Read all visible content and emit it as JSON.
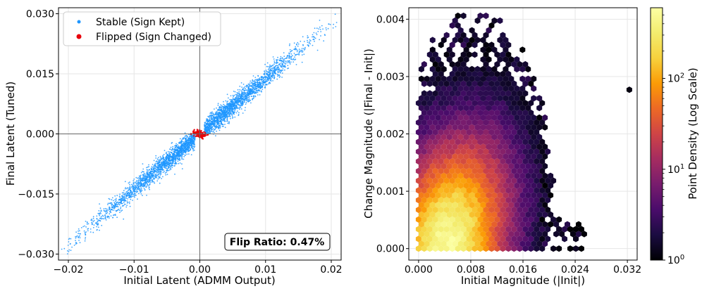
{
  "chart_data": [
    {
      "type": "scatter",
      "xlabel": "Initial Latent (ADMM Output)",
      "ylabel": "Final Latent (Tuned)",
      "xlim": [
        -0.0215,
        0.0215
      ],
      "ylim": [
        -0.0315,
        0.0315
      ],
      "x_ticks": [
        -0.02,
        -0.01,
        0.0,
        0.01,
        0.02
      ],
      "x_tick_labels": [
        "−0.02",
        "−0.01",
        "0.00",
        "0.01",
        "0.02"
      ],
      "y_ticks": [
        -0.03,
        -0.015,
        0.0,
        0.015,
        0.03
      ],
      "y_tick_labels": [
        "−0.030",
        "−0.015",
        "0.000",
        "0.015",
        "0.030"
      ],
      "grid": true,
      "reference_lines": {
        "x": 0,
        "y": 0
      },
      "legend_position": "top-left",
      "series": [
        {
          "name": "Stable (Sign Kept)",
          "color": "#1f96ff",
          "relationship": "y ≈ 1.38·x",
          "x_range": [
            -0.021,
            0.0215
          ],
          "spread_y": 0.0025
        },
        {
          "name": "Flipped (Sign Changed)",
          "color": "#e8000b",
          "x_range": [
            -0.0012,
            0.0012
          ],
          "y_range": [
            -0.0015,
            0.0015
          ]
        }
      ],
      "annotation": "Flip Ratio: 0.47%"
    },
    {
      "type": "heatmap",
      "subtype": "hexbin",
      "xlabel": "Initial Magnitude (|Init|)",
      "ylabel": "Change Magnitude (|Final - Init|)",
      "xlim": [
        -0.0015,
        0.0335
      ],
      "ylim": [
        -0.0002,
        0.0042
      ],
      "x_ticks": [
        0.0,
        0.008,
        0.016,
        0.024,
        0.032
      ],
      "x_tick_labels": [
        "0.000",
        "0.008",
        "0.016",
        "0.024",
        "0.032"
      ],
      "y_ticks": [
        0.0,
        0.001,
        0.002,
        0.003,
        0.004
      ],
      "y_tick_labels": [
        "0.000",
        "0.001",
        "0.002",
        "0.003",
        "0.004"
      ],
      "grid": true,
      "colormap": "inferno",
      "colorbar": {
        "label": "Point Density (Log Scale)",
        "scale": "log",
        "range": [
          1,
          600
        ],
        "tick_bases": [
          "10",
          "10",
          "10"
        ],
        "tick_exponents": [
          "0",
          "1",
          "2"
        ],
        "tick_values": [
          1,
          10,
          100
        ]
      },
      "density_peak": [
        0.004,
        0.0002
      ],
      "outlier": [
        0.0323,
        0.00277
      ]
    }
  ]
}
